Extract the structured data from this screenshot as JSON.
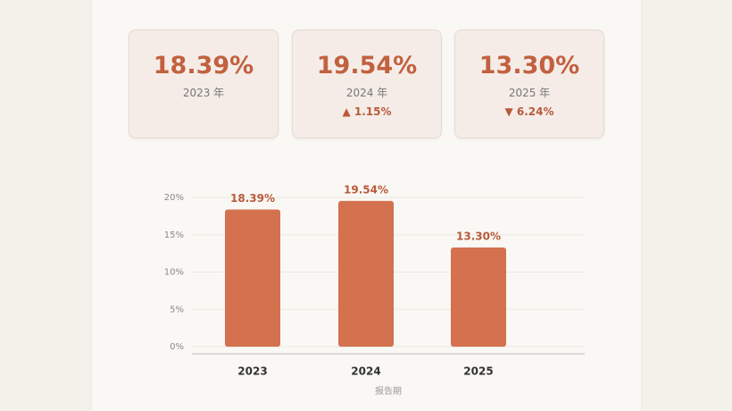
{
  "cards": [
    {
      "value": "18.39%",
      "label": "2023 年"
    },
    {
      "value": "19.54%",
      "label": "2024 年",
      "change": "▲ 1.15%"
    },
    {
      "value": "13.30%",
      "label": "2025 年",
      "change": "▼ 6.24%"
    }
  ],
  "chart_data": {
    "type": "bar",
    "x_label": "报告期",
    "categories": [
      "2023",
      "2024",
      "2025"
    ],
    "values": [
      18.39,
      19.54,
      13.3
    ],
    "value_labels": [
      "18.39%",
      "19.54%",
      "13.30%"
    ],
    "color": "#d4714e",
    "ylim": [
      0,
      20
    ],
    "yticks": [
      {
        "value": 0,
        "label": "0%"
      },
      {
        "value": 5,
        "label": "5%"
      },
      {
        "value": 10,
        "label": "10%"
      },
      {
        "value": 15,
        "label": "15%"
      },
      {
        "value": 20,
        "label": "20%"
      }
    ],
    "grid": true
  }
}
